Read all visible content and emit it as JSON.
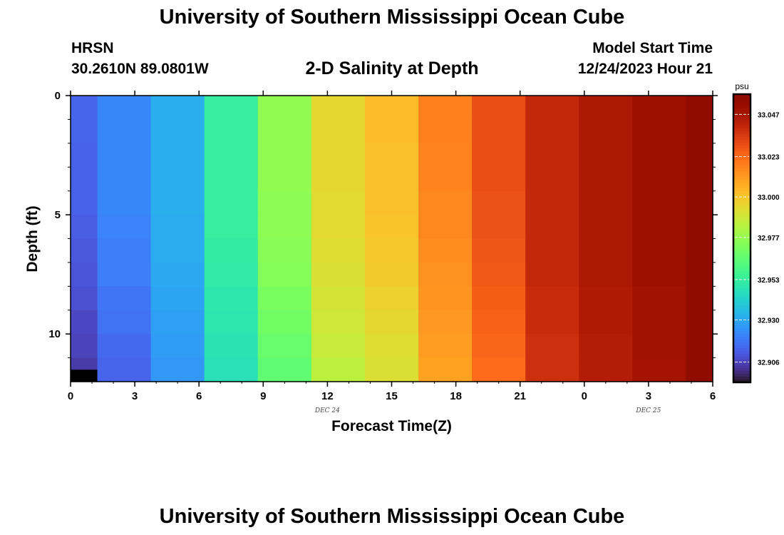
{
  "header": {
    "title": "University of Southern Mississippi Ocean Cube",
    "station": "HRSN",
    "coords": "30.2610N  89.0801W",
    "subtitle": "2-D Salinity at Depth",
    "model_start_label": "Model Start Time",
    "model_start_value": "12/24/2023 Hour 21"
  },
  "footer": {
    "title": "University of Southern Mississippi Ocean Cube"
  },
  "chart_data": {
    "type": "heatmap",
    "title": "2-D Salinity at Depth",
    "xlabel": "Forecast Time(Z)",
    "ylabel": "Depth (ft)",
    "x_ticks": [
      "0",
      "3",
      "6",
      "9",
      "12",
      "15",
      "18",
      "21",
      "0",
      "3",
      "6"
    ],
    "x_range_hours": [
      0,
      30
    ],
    "y_ticks": [
      "0",
      "5",
      "10"
    ],
    "y_range_ft": [
      0,
      12
    ],
    "y_inverted": true,
    "date_labels": [
      {
        "text": "DEC 24",
        "hour": 12
      },
      {
        "text": "DEC 25",
        "hour": 27
      }
    ],
    "column_edges_hours": [
      0,
      1.25,
      3.75,
      6.25,
      8.75,
      11.25,
      13.75,
      16.25,
      18.75,
      21.25,
      23.75,
      26.25,
      28.75,
      30
    ],
    "row_edges_ft": [
      0,
      1,
      2,
      3,
      4,
      5,
      6,
      7,
      8,
      9,
      10,
      11,
      11.5,
      12
    ],
    "values": [
      [
        32.914,
        32.922,
        32.932,
        32.953,
        32.976,
        32.995,
        33.003,
        33.018,
        33.03,
        33.04,
        33.046,
        33.05,
        33.058
      ],
      [
        32.914,
        32.922,
        32.932,
        32.953,
        32.976,
        32.995,
        33.003,
        33.018,
        33.03,
        33.04,
        33.046,
        33.05,
        33.06
      ],
      [
        32.913,
        32.922,
        32.932,
        32.953,
        32.976,
        32.995,
        33.002,
        33.017,
        33.03,
        33.04,
        33.046,
        33.05,
        33.062
      ],
      [
        32.913,
        32.922,
        32.932,
        32.953,
        32.976,
        32.995,
        33.002,
        33.017,
        33.03,
        33.04,
        33.046,
        33.05,
        33.065
      ],
      [
        32.913,
        32.922,
        32.932,
        32.953,
        32.975,
        32.994,
        33.002,
        33.016,
        33.029,
        33.04,
        33.046,
        33.05,
        33.068
      ],
      [
        32.912,
        32.921,
        32.931,
        32.953,
        32.975,
        32.994,
        33.001,
        33.016,
        33.029,
        33.04,
        33.046,
        33.05,
        33.075
      ],
      [
        32.911,
        32.92,
        32.931,
        32.952,
        32.974,
        32.993,
        33.0,
        33.015,
        33.028,
        33.04,
        33.046,
        33.05,
        33.085
      ],
      [
        32.91,
        32.92,
        32.93,
        32.951,
        32.973,
        32.992,
        32.999,
        33.014,
        33.027,
        33.04,
        33.046,
        33.05,
        33.09
      ],
      [
        32.909,
        32.918,
        32.929,
        32.95,
        32.971,
        32.99,
        32.997,
        33.013,
        33.026,
        33.039,
        33.045,
        33.049,
        33.09
      ],
      [
        32.907,
        32.917,
        32.928,
        32.949,
        32.969,
        32.989,
        32.995,
        33.012,
        33.025,
        33.039,
        33.045,
        33.049,
        33.09
      ],
      [
        32.906,
        32.915,
        32.927,
        32.948,
        32.967,
        32.987,
        32.993,
        33.011,
        33.024,
        33.038,
        33.044,
        33.049,
        33.09
      ],
      [
        32.904,
        32.914,
        32.926,
        32.947,
        32.965,
        32.985,
        32.992,
        33.01,
        33.023,
        33.038,
        33.044,
        33.048,
        33.09
      ],
      [
        32.88,
        32.914,
        32.926,
        32.947,
        32.965,
        32.985,
        32.992,
        33.01,
        33.023,
        33.038,
        33.044,
        33.048,
        33.09
      ]
    ],
    "colorbar": {
      "unit": "psu",
      "labels": [
        "33.047",
        "33.023",
        "33.000",
        "32.977",
        "32.953",
        "32.930",
        "32.906"
      ],
      "label_values": [
        33.047,
        33.023,
        33.0,
        32.977,
        32.953,
        32.93,
        32.906
      ],
      "range": [
        32.8945,
        33.0585
      ],
      "colormap": "turbo"
    },
    "grid": false,
    "legend": "right (colorbar)"
  }
}
